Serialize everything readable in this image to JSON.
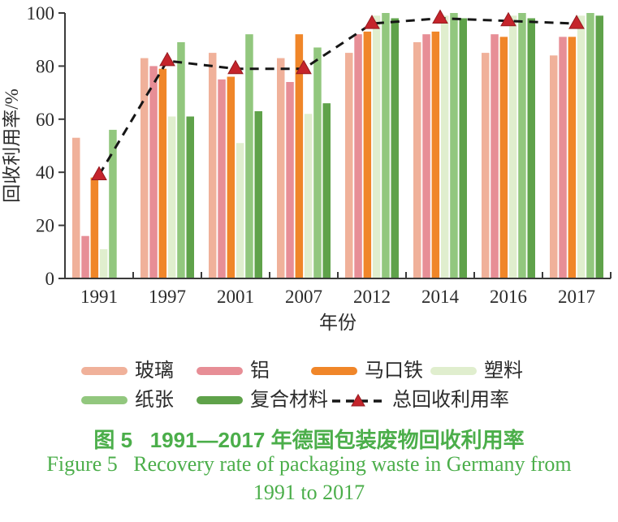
{
  "chart_data": {
    "type": "bar",
    "title": "",
    "categories": [
      "1991",
      "1997",
      "2001",
      "2007",
      "2012",
      "2014",
      "2016",
      "2017"
    ],
    "series": [
      {
        "key": "glass",
        "name": "玻璃",
        "color": "#F0B19A",
        "values": [
          53,
          83,
          85,
          83,
          85,
          89,
          85,
          84
        ]
      },
      {
        "key": "aluminum",
        "name": "铝",
        "color": "#E78E96",
        "values": [
          16,
          80,
          75,
          74,
          92,
          92,
          92,
          91
        ]
      },
      {
        "key": "tinplate",
        "name": "马口铁",
        "color": "#F08629",
        "values": [
          38,
          79,
          76,
          92,
          93,
          93,
          91,
          91
        ]
      },
      {
        "key": "plastic",
        "name": "塑料",
        "color": "#E0EECE",
        "values": [
          11,
          61,
          51,
          62,
          99,
          99,
          99,
          99
        ]
      },
      {
        "key": "paper",
        "name": "纸张",
        "color": "#92C77E",
        "values": [
          56,
          89,
          92,
          87,
          100,
          100,
          100,
          100
        ]
      },
      {
        "key": "composite",
        "name": "复合材料",
        "color": "#5FA24A",
        "values": [
          0,
          61,
          63,
          66,
          98,
          98,
          98,
          99
        ]
      }
    ],
    "line_series": {
      "key": "total-recovery-rate",
      "name": "总回收利用率",
      "values": [
        39,
        82,
        79,
        79,
        96,
        98,
        97,
        96
      ],
      "line_color": "#161616",
      "marker_color": "#C5242B",
      "marker_edge_color": "#941A20",
      "marker": "triangle",
      "line_style": "dashed"
    },
    "xlabel": "年份",
    "ylabel": "回收利用率/%",
    "ylim": [
      0,
      100
    ],
    "yticks": [
      0,
      20,
      40,
      60,
      80,
      100
    ],
    "grid": false,
    "legend_position": "bottom"
  },
  "caption": {
    "zh": "图 5   1991—2017 年德国包装废物回收利用率",
    "en_line1": "Figure 5   Recovery rate of packaging waste in Germany from",
    "en_line2": "1991 to 2017"
  }
}
